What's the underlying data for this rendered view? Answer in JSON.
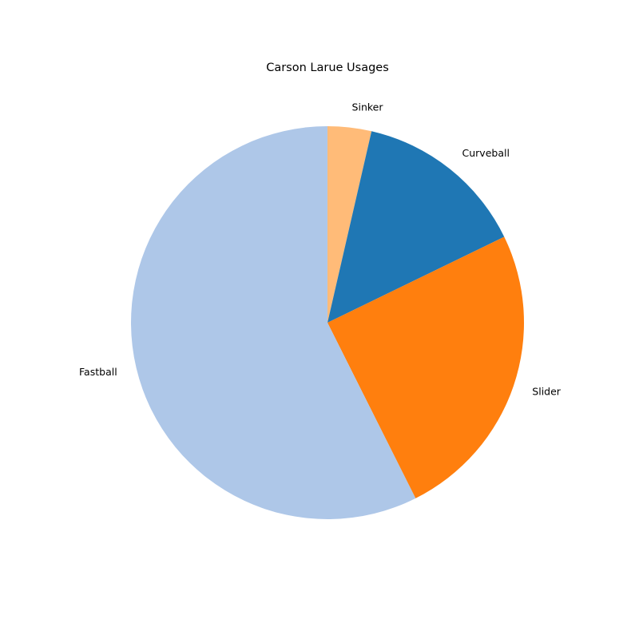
{
  "chart_data": {
    "type": "pie",
    "title": "Carson Larue Usages",
    "start_angle_deg": 90,
    "direction": "clockwise",
    "slices": [
      {
        "label": "Sinker",
        "value": 3.6,
        "color": "#ffbb78"
      },
      {
        "label": "Curveball",
        "value": 14.2,
        "color": "#1f77b4"
      },
      {
        "label": "Slider",
        "value": 24.8,
        "color": "#ff7f0e"
      },
      {
        "label": "Fastball",
        "value": 57.4,
        "color": "#aec7e8"
      }
    ]
  }
}
